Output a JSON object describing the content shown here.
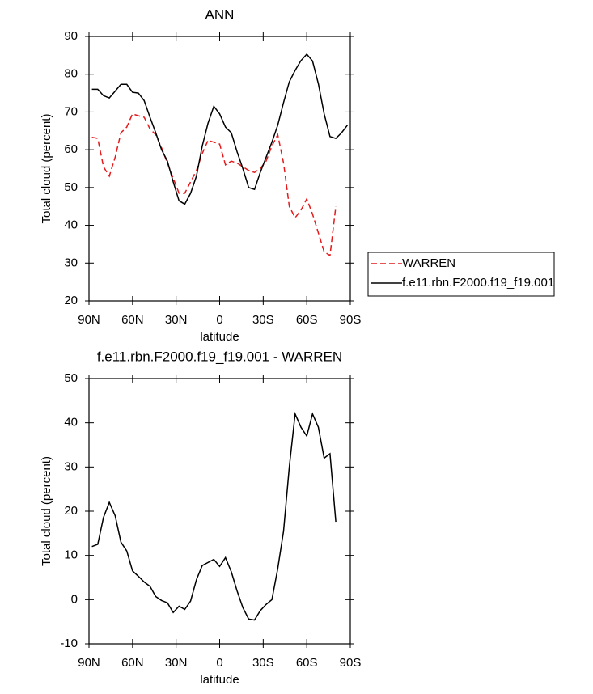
{
  "chart_data": [
    {
      "type": "line",
      "title": "ANN",
      "x_label": "latitude",
      "y_label": "Total cloud (percent)",
      "x": [
        88,
        84,
        80,
        76,
        72,
        68,
        64,
        60,
        56,
        52,
        48,
        44,
        40,
        36,
        32,
        28,
        24,
        20,
        16,
        12,
        8,
        4,
        0,
        -4,
        -8,
        -12,
        -16,
        -20,
        -24,
        -28,
        -32,
        -36,
        -40,
        -44,
        -48,
        -52,
        -56,
        -60,
        -64,
        -68,
        -72,
        -76,
        -80,
        -84,
        -88
      ],
      "series": [
        {
          "name": "WARREN",
          "color": "#e41a1c",
          "style": "dashed",
          "values": [
            63.3,
            63,
            55.5,
            53,
            58,
            64.5,
            66,
            69.5,
            69,
            68.6,
            65.5,
            64,
            60.5,
            56.5,
            52.5,
            48.5,
            48.5,
            51.5,
            54.5,
            59,
            62.5,
            62,
            61.5,
            56,
            57,
            56.5,
            55.5,
            54.5,
            54,
            55,
            57,
            61,
            64,
            56.5,
            45,
            42,
            44,
            47,
            43,
            38,
            33,
            32,
            45,
            null,
            null
          ]
        },
        {
          "name": "f.e11.rbn.F2000.f19_f19.001",
          "color": "#000000",
          "style": "solid",
          "values": [
            76,
            76,
            74.3,
            73.7,
            75.5,
            77.3,
            77.3,
            75.2,
            75,
            73,
            68.6,
            64.5,
            60,
            57,
            51.5,
            46.5,
            45.6,
            48.5,
            53,
            61,
            67,
            71.5,
            69.5,
            66,
            64.5,
            59.5,
            55,
            50,
            49.5,
            54,
            58,
            62,
            66.5,
            72.5,
            78,
            81,
            83.6,
            85.3,
            83.5,
            77.5,
            69.5,
            63.5,
            63,
            64.5,
            66.5
          ]
        }
      ],
      "xlim": [
        90,
        -90
      ],
      "xticks": [
        {
          "value": 90,
          "label": "90N"
        },
        {
          "value": 60,
          "label": "60N"
        },
        {
          "value": 30,
          "label": "30N"
        },
        0,
        {
          "value": -30,
          "label": "30S"
        },
        {
          "value": -60,
          "label": "60S"
        },
        {
          "value": -90,
          "label": "90S"
        }
      ],
      "ylim": [
        20,
        90
      ],
      "yticks": [
        20,
        30,
        40,
        50,
        60,
        70,
        80,
        90
      ],
      "legend": "right"
    },
    {
      "type": "line",
      "title": "f.e11.rbn.F2000.f19_f19.001 - WARREN",
      "x_label": "latitude",
      "y_label": "Total cloud (percent)",
      "x": [
        88,
        84,
        80,
        76,
        72,
        68,
        64,
        60,
        56,
        52,
        48,
        44,
        40,
        36,
        32,
        28,
        24,
        20,
        16,
        12,
        8,
        4,
        0,
        -4,
        -8,
        -12,
        -16,
        -20,
        -24,
        -28,
        -32,
        -36,
        -40,
        -44,
        -48,
        -52,
        -56,
        -60,
        -64,
        -68,
        -72,
        -76,
        -80
      ],
      "color": "#000000",
      "values": [
        12,
        12.5,
        18.6,
        22,
        19,
        13,
        11,
        6.5,
        5.3,
        4,
        3,
        0.7,
        -0.2,
        -0.7,
        -2.9,
        -1.5,
        -2.2,
        -0.3,
        4.5,
        7.7,
        8.4,
        9.1,
        7.5,
        9.5,
        6.3,
        2,
        -1.8,
        -4.4,
        -4.6,
        -2.5,
        -1.1,
        0,
        7,
        15.5,
        30,
        42,
        39,
        37,
        42,
        39,
        32,
        33,
        17.6
      ],
      "xlim": [
        90,
        -90
      ],
      "xticks": [
        {
          "value": 90,
          "label": "90N"
        },
        {
          "value": 60,
          "label": "60N"
        },
        {
          "value": 30,
          "label": "30N"
        },
        0,
        {
          "value": -30,
          "label": "30S"
        },
        {
          "value": -60,
          "label": "60S"
        },
        {
          "value": -90,
          "label": "90S"
        }
      ],
      "ylim": [
        -10,
        50
      ],
      "yticks": [
        -10,
        0,
        10,
        20,
        30,
        40,
        50
      ]
    }
  ]
}
